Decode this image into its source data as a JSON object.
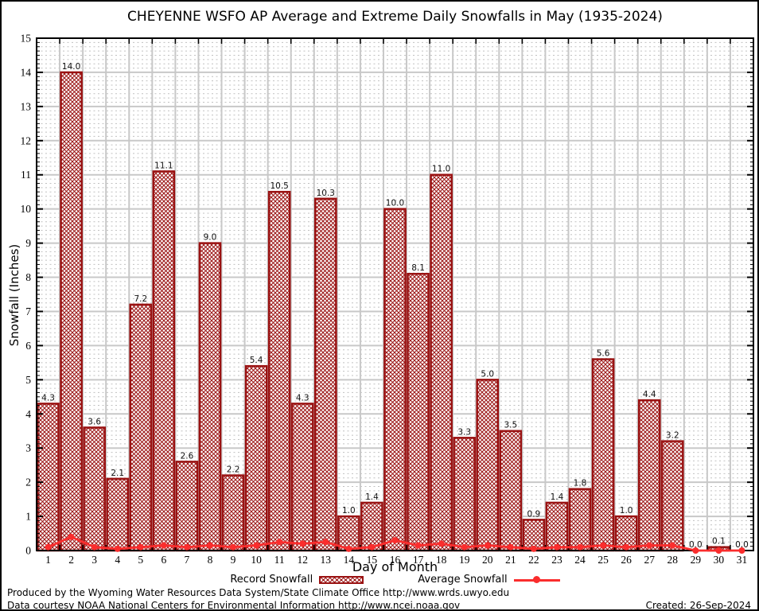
{
  "title": "CHEYENNE WSFO AP Average and Extreme Daily Snowfalls in May (1935-2024)",
  "chart_data": {
    "type": "bar",
    "title": "CHEYENNE WSFO AP Average and Extreme Daily Snowfalls in May (1935-2024)",
    "xlabel": "Day of Month",
    "ylabel": "Snowfall (Inches)",
    "ylim": [
      0,
      15
    ],
    "ytick_step": 1,
    "grid": "major solid gray, minor dotted gray",
    "legend_position": "bottom",
    "days": [
      1,
      2,
      3,
      4,
      5,
      6,
      7,
      8,
      9,
      10,
      11,
      12,
      13,
      14,
      15,
      16,
      17,
      18,
      19,
      20,
      21,
      22,
      23,
      24,
      25,
      26,
      27,
      28,
      29,
      30,
      31
    ],
    "series": [
      {
        "name": "Record Snowfall",
        "type": "bar",
        "values": [
          4.3,
          14.0,
          3.6,
          2.1,
          7.2,
          11.1,
          2.6,
          9.0,
          2.2,
          5.4,
          10.5,
          4.3,
          10.3,
          1.0,
          1.4,
          10.0,
          8.1,
          11.0,
          3.3,
          5.0,
          3.5,
          0.9,
          1.4,
          1.8,
          5.6,
          1.0,
          4.4,
          3.2,
          0.0,
          0.1,
          0.0
        ]
      },
      {
        "name": "Average Snowfall",
        "type": "line",
        "values": [
          0.1,
          0.4,
          0.1,
          0.05,
          0.1,
          0.15,
          0.1,
          0.15,
          0.1,
          0.15,
          0.25,
          0.2,
          0.25,
          0.05,
          0.1,
          0.3,
          0.15,
          0.2,
          0.1,
          0.15,
          0.1,
          0.05,
          0.1,
          0.1,
          0.15,
          0.1,
          0.15,
          0.15,
          0.0,
          0.0,
          0.0
        ]
      }
    ]
  },
  "legend": {
    "record_label": "Record Snowfall",
    "average_label": "Average Snowfall"
  },
  "footer": {
    "line1": "Produced by the Wyoming Water Resources Data System/State Climate Office http://www.wrds.uwyo.edu",
    "line2": "Data courtesy NOAA National Centers for Environmental Information http://www.ncei.noaa.gov",
    "created": "Created: 26-Sep-2024"
  },
  "colors": {
    "bar": "#9a1212",
    "line": "#fa2d2d",
    "grid_major": "#c8c8c8",
    "grid_minor": "#c0c0c0",
    "text": "#000000"
  }
}
